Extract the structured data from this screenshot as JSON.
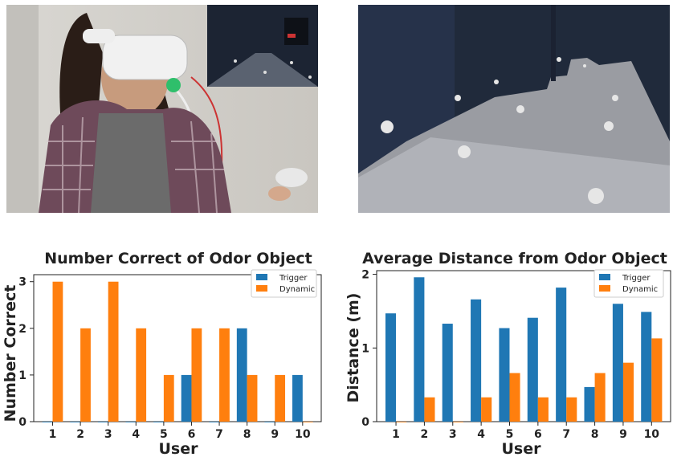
{
  "colors": {
    "trigger": "#1f77b4",
    "dynamic": "#ff7f0e"
  },
  "photos": {
    "left": {
      "icon": "vr-user-photo"
    },
    "right": {
      "icon": "vr-scene-render"
    }
  },
  "chart_data": [
    {
      "type": "bar",
      "title": "Number Correct of Odor Object",
      "xlabel": "User",
      "ylabel": "Number Correct",
      "categories": [
        "1",
        "2",
        "3",
        "4",
        "5",
        "6",
        "7",
        "8",
        "9",
        "10"
      ],
      "ylim": [
        0,
        3.15
      ],
      "yticks": [
        "0",
        "1",
        "2",
        "3"
      ],
      "legend": "top-right",
      "series": [
        {
          "name": "Trigger",
          "values": [
            0,
            0,
            0,
            0,
            0,
            1,
            0,
            2,
            0,
            1
          ]
        },
        {
          "name": "Dynamic",
          "values": [
            3,
            2,
            3,
            2,
            1,
            2,
            2,
            1,
            1,
            0
          ]
        }
      ]
    },
    {
      "type": "bar",
      "title": "Average Distance from Odor Object",
      "xlabel": "User",
      "ylabel": "Distance (m)",
      "categories": [
        "1",
        "2",
        "3",
        "4",
        "5",
        "6",
        "7",
        "8",
        "9",
        "10"
      ],
      "ylim": [
        0,
        2.05
      ],
      "yticks": [
        "0",
        "1",
        "2"
      ],
      "legend": "top-right",
      "series": [
        {
          "name": "Trigger",
          "values": [
            1.47,
            1.96,
            1.33,
            1.66,
            1.27,
            1.41,
            1.82,
            0.47,
            1.6,
            1.49
          ]
        },
        {
          "name": "Dynamic",
          "values": [
            0,
            0.33,
            0,
            0.33,
            0.66,
            0.33,
            0.33,
            0.66,
            0.8,
            1.13
          ]
        }
      ]
    }
  ]
}
